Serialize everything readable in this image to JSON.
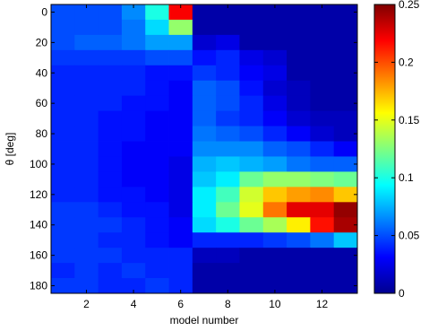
{
  "chart_data": {
    "type": "heatmap",
    "title": "",
    "xlabel": "model number",
    "ylabel": "θ [deg]",
    "x": [
      1,
      2,
      3,
      4,
      5,
      6,
      7,
      8,
      9,
      10,
      11,
      12,
      13
    ],
    "y": [
      0,
      10,
      20,
      30,
      40,
      50,
      60,
      70,
      80,
      90,
      100,
      110,
      120,
      130,
      140,
      150,
      160,
      170,
      180
    ],
    "xlim": [
      0.5,
      13.5
    ],
    "ylim": [
      -5,
      185
    ],
    "x_ticks": [
      2,
      4,
      6,
      8,
      10,
      12
    ],
    "x_tick_labels": [
      "2",
      "4",
      "6",
      "8",
      "10",
      "12"
    ],
    "y_ticks": [
      0,
      20,
      40,
      60,
      80,
      100,
      120,
      140,
      160,
      180
    ],
    "y_tick_labels": [
      "0",
      "20",
      "40",
      "60",
      "80",
      "100",
      "120",
      "140",
      "160",
      "180"
    ],
    "colormap": "jet",
    "clim": [
      0,
      0.25
    ],
    "colorbar_ticks": [
      0,
      0.05,
      0.1,
      0.15,
      0.2,
      0.25
    ],
    "colorbar_tick_labels": [
      "0",
      "0.05",
      "0.1",
      "0.15",
      "0.2",
      "0.25"
    ],
    "values": [
      [
        0.05,
        0.05,
        0.05,
        0.065,
        0.1,
        0.22,
        0.01,
        0.01,
        0.01,
        0.01,
        0.01,
        0.01,
        0.01
      ],
      [
        0.05,
        0.05,
        0.05,
        0.06,
        0.085,
        0.13,
        0.01,
        0.01,
        0.01,
        0.01,
        0.01,
        0.01,
        0.01
      ],
      [
        0.05,
        0.055,
        0.055,
        0.06,
        0.07,
        0.07,
        0.02,
        0.025,
        0.01,
        0.01,
        0.01,
        0.01,
        0.01
      ],
      [
        0.045,
        0.045,
        0.045,
        0.045,
        0.05,
        0.05,
        0.035,
        0.04,
        0.025,
        0.02,
        0.01,
        0.01,
        0.01
      ],
      [
        0.04,
        0.04,
        0.04,
        0.04,
        0.035,
        0.035,
        0.045,
        0.04,
        0.03,
        0.025,
        0.01,
        0.01,
        0.01
      ],
      [
        0.04,
        0.04,
        0.04,
        0.04,
        0.035,
        0.03,
        0.055,
        0.05,
        0.035,
        0.02,
        0.015,
        0.01,
        0.01
      ],
      [
        0.04,
        0.04,
        0.04,
        0.035,
        0.035,
        0.03,
        0.055,
        0.05,
        0.04,
        0.025,
        0.015,
        0.01,
        0.01
      ],
      [
        0.04,
        0.04,
        0.035,
        0.035,
        0.03,
        0.03,
        0.055,
        0.045,
        0.04,
        0.03,
        0.02,
        0.015,
        0.015
      ],
      [
        0.04,
        0.04,
        0.035,
        0.035,
        0.03,
        0.03,
        0.06,
        0.055,
        0.05,
        0.04,
        0.03,
        0.02,
        0.015
      ],
      [
        0.04,
        0.04,
        0.035,
        0.03,
        0.03,
        0.03,
        0.065,
        0.065,
        0.065,
        0.055,
        0.05,
        0.04,
        0.03
      ],
      [
        0.04,
        0.04,
        0.035,
        0.03,
        0.03,
        0.025,
        0.075,
        0.08,
        0.075,
        0.07,
        0.06,
        0.055,
        0.055
      ],
      [
        0.04,
        0.04,
        0.035,
        0.03,
        0.03,
        0.025,
        0.08,
        0.09,
        0.12,
        0.13,
        0.13,
        0.125,
        0.12
      ],
      [
        0.04,
        0.04,
        0.035,
        0.035,
        0.03,
        0.025,
        0.09,
        0.11,
        0.145,
        0.17,
        0.18,
        0.185,
        0.17
      ],
      [
        0.045,
        0.045,
        0.04,
        0.035,
        0.035,
        0.025,
        0.09,
        0.12,
        0.15,
        0.19,
        0.225,
        0.225,
        0.245
      ],
      [
        0.045,
        0.045,
        0.045,
        0.04,
        0.035,
        0.03,
        0.085,
        0.1,
        0.12,
        0.135,
        0.16,
        0.215,
        0.24
      ],
      [
        0.045,
        0.045,
        0.04,
        0.04,
        0.035,
        0.03,
        0.04,
        0.04,
        0.04,
        0.045,
        0.05,
        0.06,
        0.08
      ],
      [
        0.045,
        0.045,
        0.045,
        0.04,
        0.04,
        0.04,
        0.015,
        0.015,
        0.01,
        0.01,
        0.01,
        0.01,
        0.01
      ],
      [
        0.04,
        0.045,
        0.04,
        0.045,
        0.04,
        0.04,
        0.01,
        0.01,
        0.01,
        0.01,
        0.01,
        0.01,
        0.01
      ],
      [
        0.045,
        0.045,
        0.04,
        0.04,
        0.045,
        0.04,
        0.01,
        0.01,
        0.01,
        0.01,
        0.01,
        0.01,
        0.01
      ]
    ]
  }
}
